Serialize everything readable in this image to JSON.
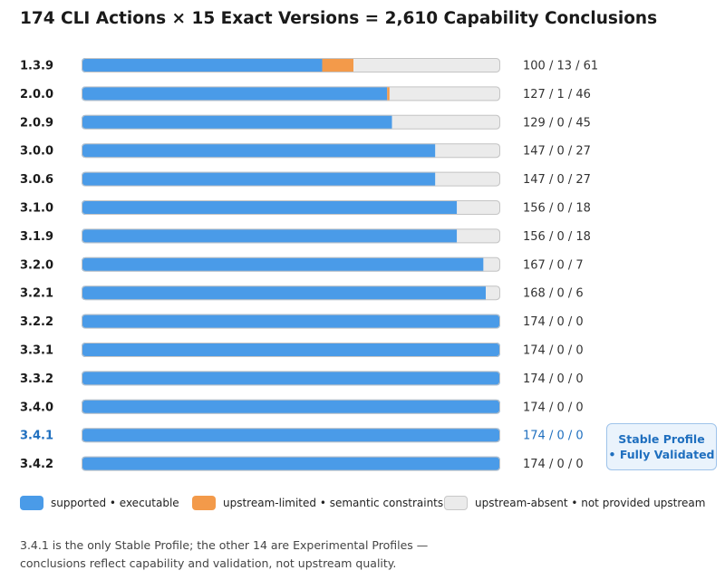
{
  "chart_data": {
    "type": "bar",
    "stacked": true,
    "orientation": "horizontal",
    "title": "174 CLI Actions × 15 Exact Versions = 2,610 Capability Conclusions",
    "categories": [
      "1.3.9",
      "2.0.0",
      "2.0.9",
      "3.0.0",
      "3.0.6",
      "3.1.0",
      "3.1.9",
      "3.2.0",
      "3.2.1",
      "3.2.2",
      "3.3.1",
      "3.3.2",
      "3.4.0",
      "3.4.1",
      "3.4.2"
    ],
    "series": [
      {
        "name": "supported • executable",
        "color": "#4a9be8",
        "values": [
          100,
          127,
          129,
          147,
          147,
          156,
          156,
          167,
          168,
          174,
          174,
          174,
          174,
          174,
          174
        ]
      },
      {
        "name": "upstream-limited • semantic constraints",
        "color": "#f39a4a",
        "values": [
          13,
          1,
          0,
          0,
          0,
          0,
          0,
          0,
          0,
          0,
          0,
          0,
          0,
          0,
          0
        ]
      },
      {
        "name": "upstream-absent • not provided upstream",
        "color": "#ebebeb",
        "values": [
          61,
          46,
          45,
          27,
          27,
          18,
          18,
          7,
          6,
          0,
          0,
          0,
          0,
          0,
          0
        ]
      }
    ],
    "count_labels": [
      "100 / 13 / 61",
      "127 / 1 / 46",
      "129 / 0 / 45",
      "147 / 0 / 27",
      "147 / 0 / 27",
      "156 / 0 / 18",
      "156 / 0 / 18",
      "167 / 0 / 7",
      "168 / 0 / 6",
      "174 / 0 / 0",
      "174 / 0 / 0",
      "174 / 0 / 0",
      "174 / 0 / 0",
      "174 / 0 / 0",
      "174 / 0 / 0"
    ],
    "xlim": [
      0,
      174
    ],
    "highlight_category": "3.4.1",
    "highlight_color": "#1f6fbf",
    "grid": false
  },
  "badge": {
    "line1": "Stable Profile",
    "line2": "• Fully Validated"
  },
  "legend": [
    {
      "label": "supported • executable"
    },
    {
      "label": "upstream-limited • semantic constraints"
    },
    {
      "label": "upstream-absent • not provided upstream"
    }
  ],
  "note": {
    "line1": "3.4.1 is the only Stable Profile; the other 14 are Experimental Profiles —",
    "line2": "conclusions reflect capability and validation, not upstream quality."
  }
}
